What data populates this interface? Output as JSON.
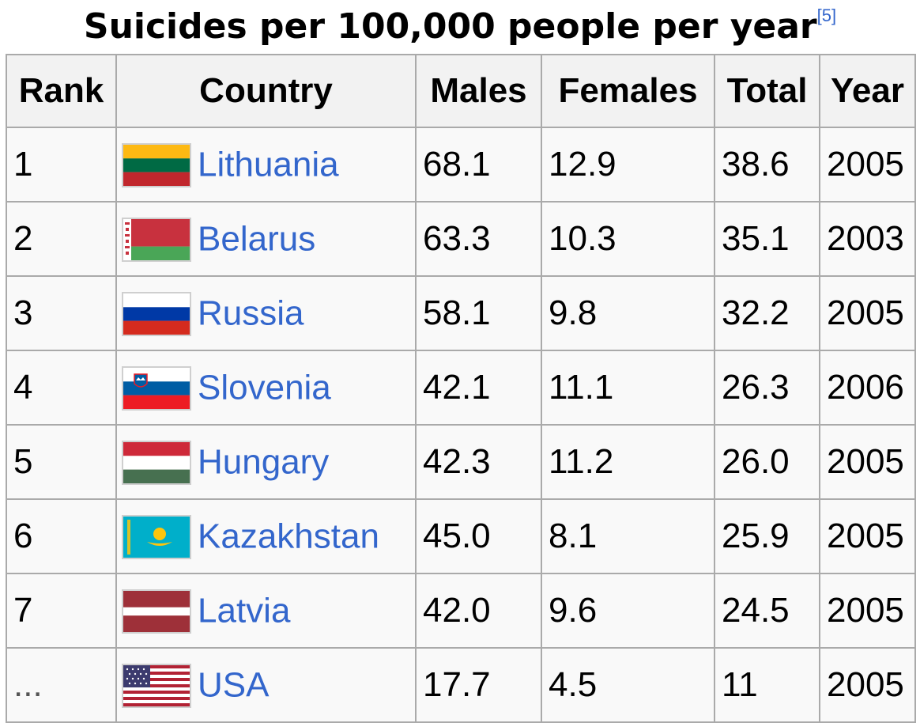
{
  "caption": {
    "title": "Suicides per 100,000 people per year",
    "ref": "[5]"
  },
  "headers": {
    "rank": "Rank",
    "country": "Country",
    "males": "Males",
    "females": "Females",
    "total": "Total",
    "year": "Year"
  },
  "rows": [
    {
      "rank": "1",
      "country": "Lithuania",
      "flag": "lithuania-flag-icon",
      "males": "68.1",
      "females": "12.9",
      "total": "38.6",
      "year": "2005"
    },
    {
      "rank": "2",
      "country": "Belarus",
      "flag": "belarus-flag-icon",
      "males": "63.3",
      "females": "10.3",
      "total": "35.1",
      "year": "2003"
    },
    {
      "rank": "3",
      "country": "Russia",
      "flag": "russia-flag-icon",
      "males": "58.1",
      "females": "9.8",
      "total": "32.2",
      "year": "2005"
    },
    {
      "rank": "4",
      "country": "Slovenia",
      "flag": "slovenia-flag-icon",
      "males": "42.1",
      "females": "11.1",
      "total": "26.3",
      "year": "2006"
    },
    {
      "rank": "5",
      "country": "Hungary",
      "flag": "hungary-flag-icon",
      "males": "42.3",
      "females": "11.2",
      "total": "26.0",
      "year": "2005"
    },
    {
      "rank": "6",
      "country": "Kazakhstan",
      "flag": "kazakhstan-flag-icon",
      "males": "45.0",
      "females": "8.1",
      "total": "25.9",
      "year": "2005"
    },
    {
      "rank": "7",
      "country": "Latvia",
      "flag": "latvia-flag-icon",
      "males": "42.0",
      "females": "9.6",
      "total": "24.5",
      "year": "2005"
    },
    {
      "rank": "...",
      "country": "USA",
      "flag": "usa-flag-icon",
      "males": "17.7",
      "females": "4.5",
      "total": "11",
      "year": "2005"
    }
  ],
  "colors": {
    "link": "#3366cc",
    "header_bg": "#f2f2f2",
    "cell_bg": "#f9f9f9",
    "border": "#aaaaaa"
  }
}
